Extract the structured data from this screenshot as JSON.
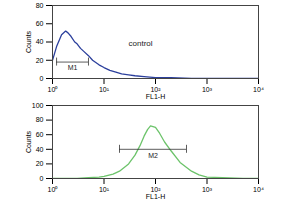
{
  "chart_data": [
    {
      "type": "line",
      "log": "x",
      "grid": false,
      "color": "#2b3f9c",
      "x_label": "FL1-H",
      "y_label": "Counts",
      "xlim": [
        1,
        10000
      ],
      "xticks": [
        {
          "value": 1,
          "label": "10⁰"
        },
        {
          "value": 10,
          "label": "10¹"
        },
        {
          "value": 100,
          "label": "10²"
        },
        {
          "value": 1000,
          "label": "10³"
        },
        {
          "value": 10000,
          "label": "10⁴"
        }
      ],
      "ylim": [
        0,
        80
      ],
      "yticks": [
        0,
        20,
        40,
        60,
        80
      ],
      "x": [
        1,
        1.2,
        1.5,
        1.8,
        2,
        2.3,
        2.7,
        3,
        3.5,
        4,
        5,
        6,
        8,
        10,
        13,
        17,
        22,
        30,
        40,
        60,
        100,
        200,
        500,
        1000,
        3000,
        10000
      ],
      "values": [
        20,
        35,
        48,
        52,
        50,
        46,
        40,
        38,
        33,
        30,
        25,
        20,
        15,
        12,
        9,
        7,
        5,
        4,
        3,
        2,
        1,
        1,
        0,
        0,
        0,
        0
      ],
      "annotations": [
        {
          "text": "control",
          "x": 30,
          "y": 38
        },
        {
          "text": "M1",
          "x": [
            1.2,
            5
          ],
          "y": 18
        }
      ]
    },
    {
      "type": "line",
      "log": "x",
      "grid": false,
      "color": "#6cc36a",
      "x_label": "FL1-H",
      "y_label": "Counts",
      "xlim": [
        1,
        10000
      ],
      "xticks": [
        {
          "value": 1,
          "label": "10⁰"
        },
        {
          "value": 10,
          "label": "10¹"
        },
        {
          "value": 100,
          "label": "10²"
        },
        {
          "value": 1000,
          "label": "10³"
        },
        {
          "value": 10000,
          "label": "10⁴"
        }
      ],
      "ylim": [
        0,
        100
      ],
      "yticks": [
        0,
        20,
        40,
        60,
        80,
        100
      ],
      "x": [
        1,
        3,
        5,
        8,
        10,
        15,
        20,
        30,
        40,
        50,
        60,
        70,
        80,
        100,
        120,
        150,
        200,
        300,
        500,
        700,
        1000,
        2000,
        5000,
        10000
      ],
      "values": [
        0,
        0,
        1,
        2,
        3,
        6,
        10,
        20,
        32,
        45,
        58,
        67,
        72,
        70,
        62,
        50,
        38,
        22,
        10,
        5,
        2,
        1,
        0,
        0
      ],
      "annotations": [
        {
          "text": "M2",
          "x": [
            20,
            400
          ],
          "y": 40
        }
      ]
    }
  ]
}
